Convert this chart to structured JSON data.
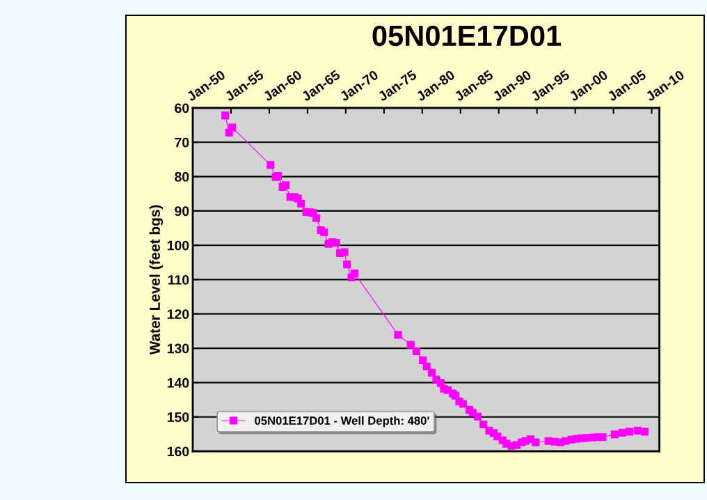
{
  "chart_data": {
    "type": "line",
    "title": "05N01E17D01",
    "ylabel": "Water Level (feet bgs)",
    "x": [
      "1954-04",
      "1954-10",
      "1955-03",
      "1960-03",
      "1960-11",
      "1961-03",
      "1961-10",
      "1962-03",
      "1962-10",
      "1963-05",
      "1963-10",
      "1964-03",
      "1964-11",
      "1965-05",
      "1965-10",
      "1966-03",
      "1966-10",
      "1967-03",
      "1967-10",
      "1968-04",
      "1968-10",
      "1969-04",
      "1969-11",
      "1970-03",
      "1970-10",
      "1971-03",
      "1976-11",
      "1978-07",
      "1979-04",
      "1980-02",
      "1980-08",
      "1981-04",
      "1981-11",
      "1982-06",
      "1982-11",
      "1983-05",
      "1984-01",
      "1984-05",
      "1984-11",
      "1985-05",
      "1986-03",
      "1986-08",
      "1987-04",
      "1988-01",
      "1988-10",
      "1989-05",
      "1989-11",
      "1990-07",
      "1991-01",
      "1991-09",
      "1992-05",
      "1993-01",
      "1993-07",
      "1994-03",
      "1994-11",
      "1996-07",
      "1997-05",
      "1998-02",
      "1998-10",
      "1999-07",
      "2000-03",
      "2000-11",
      "2001-07",
      "2002-04",
      "2002-11",
      "2003-08",
      "2005-03",
      "2006-03",
      "2007-02",
      "2008-03",
      "2009-02"
    ],
    "series": [
      {
        "name": "05N01E17D01 - Well Depth: 480'",
        "color": "#ff00ff",
        "values": [
          62.2,
          67.2,
          65.7,
          76.6,
          80.1,
          79.8,
          83.0,
          82.5,
          85.9,
          86.0,
          86.4,
          87.9,
          90.3,
          90.4,
          90.6,
          92.1,
          95.6,
          96.2,
          99.6,
          99.1,
          99.3,
          102.3,
          102.0,
          105.6,
          109.4,
          108.2,
          126.1,
          129.0,
          130.9,
          133.5,
          135.3,
          137.1,
          139.1,
          140.1,
          141.8,
          142.2,
          143.2,
          143.8,
          145.5,
          146.2,
          147.9,
          148.8,
          149.9,
          152.2,
          154.0,
          154.7,
          155.7,
          156.8,
          157.8,
          158.4,
          158.2,
          157.4,
          157.0,
          156.5,
          157.4,
          157.0,
          157.2,
          157.4,
          157.0,
          156.6,
          156.4,
          156.2,
          156.1,
          156.0,
          155.9,
          155.9,
          155.1,
          154.6,
          154.3,
          154.0,
          154.3
        ]
      }
    ],
    "xlim": [
      "1950-01",
      "2011-01"
    ],
    "xticks": [
      {
        "value": "1950-01",
        "label": "Jan-50"
      },
      {
        "value": "1955-01",
        "label": "Jan-55"
      },
      {
        "value": "1960-01",
        "label": "Jan-60"
      },
      {
        "value": "1965-01",
        "label": "Jan-65"
      },
      {
        "value": "1970-01",
        "label": "Jan-70"
      },
      {
        "value": "1975-01",
        "label": "Jan-75"
      },
      {
        "value": "1980-01",
        "label": "Jan-80"
      },
      {
        "value": "1985-01",
        "label": "Jan-85"
      },
      {
        "value": "1990-01",
        "label": "Jan-90"
      },
      {
        "value": "1995-01",
        "label": "Jan-95"
      },
      {
        "value": "2000-01",
        "label": "Jan-00"
      },
      {
        "value": "2005-01",
        "label": "Jan-05"
      },
      {
        "value": "2010-01",
        "label": "Jan-10"
      }
    ],
    "ylim": [
      160,
      60
    ],
    "yticks": [
      60,
      70,
      80,
      90,
      100,
      110,
      120,
      130,
      140,
      150,
      160
    ],
    "grid": "y",
    "legend": "bottom left",
    "marker": "square",
    "line_style": "solid"
  }
}
